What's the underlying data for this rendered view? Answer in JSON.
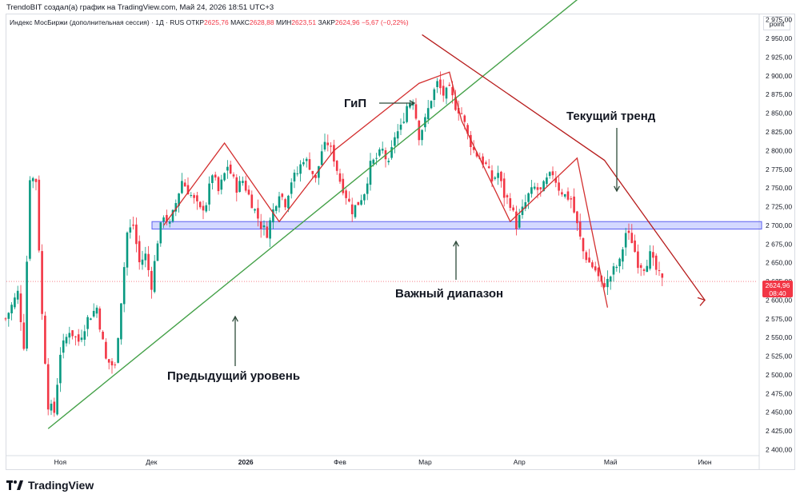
{
  "header": {
    "credit": "TrendoBIT создал(а) график на TradingView.com, Май 24, 2026 18:51 UTC+3"
  },
  "legend": {
    "symbol": "Индекс МосБиржи (дополнительная сессия) · 1Д · RUS",
    "open_label": "ОТКР",
    "open": "2625,76",
    "high_label": "МАКС",
    "high": "2628,88",
    "low_label": "МИН",
    "low": "2623,51",
    "close_label": "ЗАКР",
    "close": "2624,96",
    "change": "−5,67 (−0,22%)"
  },
  "price_unit": "point",
  "last_price": {
    "value": "2624,96",
    "countdown": "08:40"
  },
  "footer": {
    "brand": "TradingView"
  },
  "colors": {
    "up": "#089981",
    "down": "#f23645",
    "trend_green": "#43a047",
    "trend_red": "#b71c1c",
    "zone": "#5b5ff0"
  },
  "chart_data": {
    "type": "candlestick",
    "title": "",
    "y_ticks": [
      "2 975,00",
      "2 950,00",
      "2 925,00",
      "2 900,00",
      "2 875,00",
      "2 850,00",
      "2 825,00",
      "2 800,00",
      "2 775,00",
      "2 750,00",
      "2 725,00",
      "2 700,00",
      "2 675,00",
      "2 650,00",
      "2 625,00",
      "2 600,00",
      "2 575,00",
      "2 550,00",
      "2 525,00",
      "2 500,00",
      "2 475,00",
      "2 450,00",
      "2 425,00",
      "2 400,00"
    ],
    "y_tick_values": [
      2975,
      2950,
      2925,
      2900,
      2875,
      2850,
      2825,
      2800,
      2775,
      2750,
      2725,
      2700,
      2675,
      2650,
      2625,
      2600,
      2575,
      2550,
      2525,
      2500,
      2475,
      2450,
      2425,
      2400
    ],
    "ylim": [
      2378,
      3010
    ],
    "x_ticks": [
      {
        "label": "Ноя",
        "day": 18
      },
      {
        "label": "Дек",
        "day": 48
      },
      {
        "label": "2026",
        "day": 79
      },
      {
        "label": "Фев",
        "day": 110
      },
      {
        "label": "Мар",
        "day": 138
      },
      {
        "label": "Апр",
        "day": 169
      },
      {
        "label": "Май",
        "day": 199
      },
      {
        "label": "Июн",
        "day": 230
      }
    ],
    "series_path": [
      [
        0,
        2575
      ],
      [
        4,
        2610
      ],
      [
        6,
        2540
      ],
      [
        8,
        2765
      ],
      [
        10,
        2760
      ],
      [
        12,
        2580
      ],
      [
        14,
        2460
      ],
      [
        16,
        2450
      ],
      [
        18,
        2530
      ],
      [
        21,
        2560
      ],
      [
        24,
        2545
      ],
      [
        27,
        2575
      ],
      [
        30,
        2590
      ],
      [
        33,
        2520
      ],
      [
        36,
        2510
      ],
      [
        38,
        2600
      ],
      [
        40,
        2690
      ],
      [
        42,
        2700
      ],
      [
        44,
        2650
      ],
      [
        46,
        2660
      ],
      [
        48,
        2620
      ],
      [
        50,
        2680
      ],
      [
        52,
        2715
      ],
      [
        54,
        2700
      ],
      [
        56,
        2730
      ],
      [
        58,
        2760
      ],
      [
        61,
        2740
      ],
      [
        64,
        2720
      ],
      [
        66,
        2730
      ],
      [
        68,
        2770
      ],
      [
        70,
        2745
      ],
      [
        73,
        2780
      ],
      [
        76,
        2750
      ],
      [
        78,
        2760
      ],
      [
        80,
        2740
      ],
      [
        82,
        2720
      ],
      [
        84,
        2700
      ],
      [
        86,
        2690
      ],
      [
        88,
        2720
      ],
      [
        90,
        2745
      ],
      [
        92,
        2730
      ],
      [
        94,
        2760
      ],
      [
        96,
        2770
      ],
      [
        98,
        2790
      ],
      [
        100,
        2780
      ],
      [
        102,
        2760
      ],
      [
        104,
        2800
      ],
      [
        106,
        2810
      ],
      [
        108,
        2790
      ],
      [
        110,
        2760
      ],
      [
        112,
        2740
      ],
      [
        114,
        2720
      ],
      [
        116,
        2730
      ],
      [
        118,
        2745
      ],
      [
        120,
        2780
      ],
      [
        122,
        2790
      ],
      [
        124,
        2800
      ],
      [
        126,
        2780
      ],
      [
        128,
        2820
      ],
      [
        130,
        2830
      ],
      [
        132,
        2860
      ],
      [
        134,
        2870
      ],
      [
        136,
        2820
      ],
      [
        138,
        2840
      ],
      [
        140,
        2870
      ],
      [
        142,
        2890
      ],
      [
        144,
        2875
      ],
      [
        146,
        2880
      ],
      [
        148,
        2860
      ],
      [
        150,
        2850
      ],
      [
        152,
        2820
      ],
      [
        154,
        2800
      ],
      [
        156,
        2790
      ],
      [
        158,
        2780
      ],
      [
        160,
        2760
      ],
      [
        162,
        2770
      ],
      [
        164,
        2740
      ],
      [
        166,
        2730
      ],
      [
        168,
        2700
      ],
      [
        170,
        2720
      ],
      [
        172,
        2740
      ],
      [
        174,
        2750
      ],
      [
        176,
        2745
      ],
      [
        178,
        2760
      ],
      [
        180,
        2770
      ],
      [
        182,
        2750
      ],
      [
        184,
        2740
      ],
      [
        186,
        2735
      ],
      [
        188,
        2700
      ],
      [
        190,
        2665
      ],
      [
        192,
        2650
      ],
      [
        194,
        2640
      ],
      [
        196,
        2620
      ],
      [
        198,
        2625
      ],
      [
        200,
        2640
      ],
      [
        202,
        2650
      ],
      [
        204,
        2690
      ],
      [
        206,
        2680
      ],
      [
        208,
        2650
      ],
      [
        210,
        2645
      ],
      [
        212,
        2660
      ],
      [
        214,
        2640
      ],
      [
        216,
        2625
      ]
    ],
    "last_price": 2624.96,
    "annotations": [
      {
        "text": "ГиП"
      },
      {
        "text": "Текущий тренд"
      },
      {
        "text": "Важный диапазон"
      },
      {
        "text": "Предыдущий уровень"
      }
    ],
    "zone": {
      "from": 2695,
      "to": 2705
    },
    "trendlines": [
      {
        "name": "support",
        "points": [
          [
            14,
            2428
          ],
          [
            192,
            3015
          ]
        ],
        "color": "green"
      },
      {
        "name": "downtrend",
        "points": [
          [
            137,
            2955
          ],
          [
            197,
            2787
          ],
          [
            230,
            2600
          ]
        ],
        "color": "red"
      },
      {
        "name": "hs-zigzag",
        "points": [
          [
            52,
            2700
          ],
          [
            72,
            2810
          ],
          [
            90,
            2705
          ],
          [
            108,
            2800
          ],
          [
            136,
            2890
          ],
          [
            146,
            2905
          ],
          [
            150,
            2840
          ],
          [
            166,
            2705
          ],
          [
            188,
            2790
          ],
          [
            198,
            2590
          ]
        ],
        "color": "red"
      }
    ]
  }
}
